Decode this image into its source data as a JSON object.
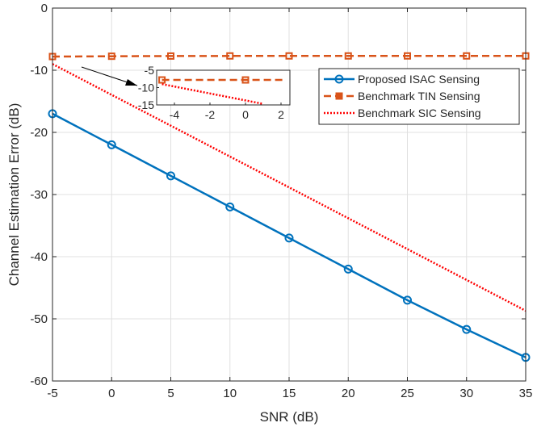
{
  "chart_data": {
    "type": "line",
    "title": "",
    "xlabel": "SNR (dB)",
    "ylabel": "Channel Estimation Error (dB)",
    "xlim": [
      -5,
      35
    ],
    "ylim": [
      -60,
      0
    ],
    "xticks": [
      -5,
      0,
      5,
      10,
      15,
      20,
      25,
      30,
      35
    ],
    "yticks": [
      0,
      -10,
      -20,
      -30,
      -40,
      -50,
      -60
    ],
    "grid": true,
    "legend_position": "top-right",
    "series": [
      {
        "name": "Proposed ISAC Sensing",
        "color": "#0072bd",
        "style": "solid",
        "marker": "circle",
        "x": [
          -5,
          0,
          5,
          10,
          15,
          20,
          25,
          30,
          35
        ],
        "y": [
          -17,
          -22,
          -27,
          -32,
          -37,
          -42,
          -47,
          -51.7,
          -56.2
        ]
      },
      {
        "name": "Benchmark TIN Sensing",
        "color": "#d95319",
        "style": "dashed",
        "marker": "square",
        "x": [
          -5,
          0,
          5,
          10,
          15,
          20,
          25,
          30,
          35
        ],
        "y": [
          -7.8,
          -7.75,
          -7.72,
          -7.7,
          -7.7,
          -7.7,
          -7.7,
          -7.7,
          -7.7
        ]
      },
      {
        "name": "Benchmark SIC Sensing",
        "color": "#ff0000",
        "style": "dotted",
        "marker": "none",
        "x": [
          -5,
          35
        ],
        "y": [
          -9,
          -48.7
        ]
      }
    ],
    "inset": {
      "xlim": [
        -5,
        2.5
      ],
      "ylim": [
        -15,
        -5
      ],
      "xticks": [
        -4,
        -2,
        0,
        2
      ],
      "yticks": [
        -5,
        -10,
        -15
      ],
      "series": [
        {
          "name": "Benchmark TIN Sensing",
          "x": [
            -4.7,
            -3.8,
            -2.8,
            -1.8,
            -0.8,
            0.2,
            1.2,
            2.2
          ],
          "y": [
            -7.8,
            -7.8,
            -7.8,
            -7.8,
            -7.8,
            -7.8,
            -7.8,
            -7.8
          ],
          "marker_x": [
            -4.7,
            0
          ]
        },
        {
          "name": "Benchmark SIC Sensing",
          "x": [
            -4.7,
            1.0
          ],
          "y": [
            -9,
            -14.7
          ]
        }
      ]
    }
  }
}
